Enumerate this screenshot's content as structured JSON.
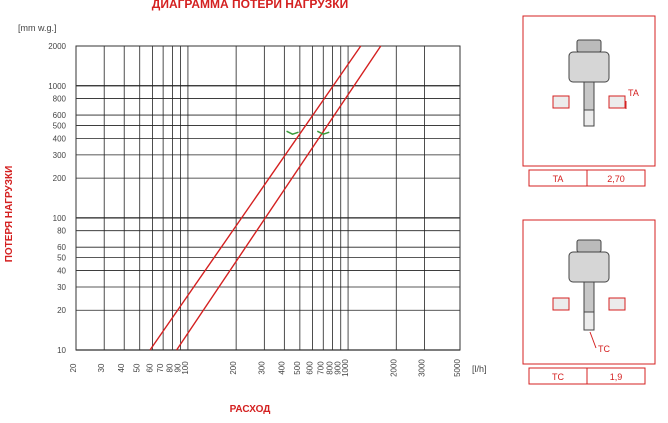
{
  "chart_data": {
    "type": "line",
    "title": "ДИАГРАММА ПОТЕРИ НАГРУЗКИ",
    "xlabel": "РАСХОД",
    "ylabel": "ПОТЕРЯ НАГРУЗКИ",
    "x_unit": "[l/h]",
    "y_unit": "[mm w.g.]",
    "x_scale": "log",
    "y_scale": "log",
    "xlim": [
      20,
      5000
    ],
    "ylim": [
      10,
      2000
    ],
    "grid": true,
    "x_ticks": [
      {
        "value": 20,
        "label": "20"
      },
      {
        "value": 30,
        "label": "30"
      },
      {
        "value": 40,
        "label": "40"
      },
      {
        "value": 50,
        "label": "50"
      },
      {
        "value": 60,
        "label": "60"
      },
      {
        "value": 70,
        "label": "70"
      },
      {
        "value": 80,
        "label": "80"
      },
      {
        "value": 90,
        "label": "90"
      },
      {
        "value": 100,
        "label": "100"
      },
      {
        "value": 200,
        "label": "200"
      },
      {
        "value": 300,
        "label": "300"
      },
      {
        "value": 400,
        "label": "400"
      },
      {
        "value": 500,
        "label": "500"
      },
      {
        "value": 600,
        "label": "600"
      },
      {
        "value": 700,
        "label": "700"
      },
      {
        "value": 800,
        "label": "800"
      },
      {
        "value": 900,
        "label": "900"
      },
      {
        "value": 1000,
        "label": "1000"
      },
      {
        "value": 2000,
        "label": "2000"
      },
      {
        "value": 3000,
        "label": "3000"
      },
      {
        "value": 5000,
        "label": "5000"
      }
    ],
    "y_ticks": [
      {
        "value": 10,
        "label": "10"
      },
      {
        "value": 20,
        "label": "20"
      },
      {
        "value": 30,
        "label": "30"
      },
      {
        "value": 40,
        "label": "40"
      },
      {
        "value": 50,
        "label": "50"
      },
      {
        "value": 60,
        "label": "60"
      },
      {
        "value": 80,
        "label": "80"
      },
      {
        "value": 100,
        "label": "100"
      },
      {
        "value": 200,
        "label": "200"
      },
      {
        "value": 300,
        "label": "300"
      },
      {
        "value": 400,
        "label": "400"
      },
      {
        "value": 500,
        "label": "500"
      },
      {
        "value": 600,
        "label": "600"
      },
      {
        "value": 800,
        "label": "800"
      },
      {
        "value": 1000,
        "label": "1000"
      },
      {
        "value": 2000,
        "label": "2000"
      }
    ],
    "series": [
      {
        "name": "TA",
        "color": "#d42020",
        "points": [
          [
            58,
            10
          ],
          [
            1200,
            2000
          ]
        ]
      },
      {
        "name": "TC",
        "color": "#d42020",
        "points": [
          [
            85,
            10
          ],
          [
            1600,
            2000
          ]
        ]
      }
    ],
    "annotations": [
      {
        "x": 450,
        "y": 430,
        "color": "#3a9a3a"
      },
      {
        "x": 700,
        "y": 430,
        "color": "#3a9a3a"
      }
    ]
  },
  "valve_cards": [
    {
      "label": "TA",
      "value": "2,70",
      "port_label": "TA",
      "accent": "#d42020"
    },
    {
      "label": "TC",
      "value": "1,9",
      "port_label": "TC",
      "accent": "#d42020"
    }
  ]
}
